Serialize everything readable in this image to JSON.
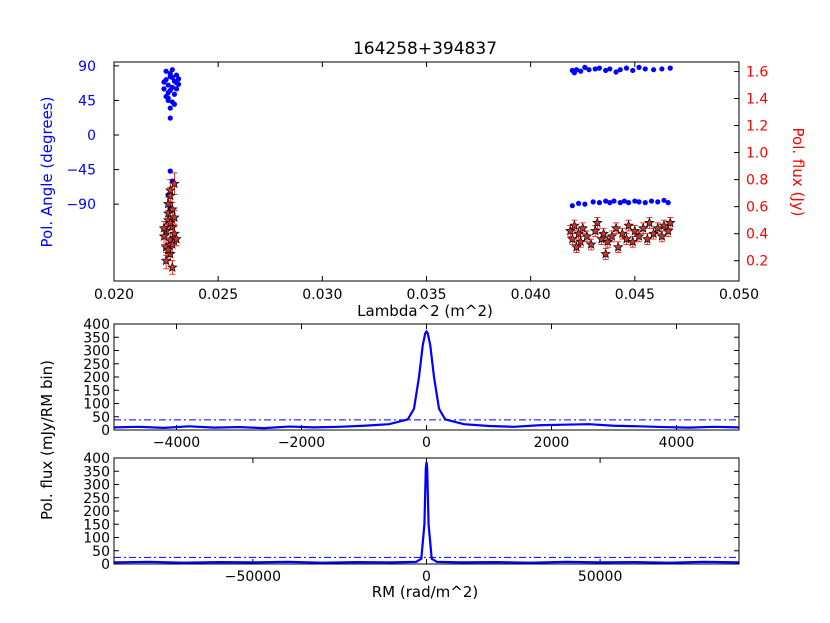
{
  "chart_data": [
    {
      "type": "scatter",
      "title": "164258+394837",
      "xlabel": "Lambda^2 (m^2)",
      "ylabel": "Pol. Angle (degrees)",
      "y2label": "Pol. flux (Jy)",
      "xlim": [
        0.02,
        0.05
      ],
      "ylim": [
        -190,
        95
      ],
      "y2lim": [
        0.05,
        1.67
      ],
      "xticks": [
        "0.020",
        "0.025",
        "0.030",
        "0.035",
        "0.040",
        "0.045",
        "0.050"
      ],
      "yticks": [
        "90",
        "45",
        "0",
        "−45",
        "−90"
      ],
      "y2ticks": [
        "0.2",
        "0.4",
        "0.6",
        "0.8",
        "1.0",
        "1.2",
        "1.4",
        "1.6"
      ],
      "grid": false,
      "colors": {
        "angle": "#0000ff",
        "flux_marker": "#cc3333",
        "flux_error": "#ff0000",
        "flux_edge": "#000000",
        "right_axis": "#ff0000",
        "left_axis": "#0000ff"
      },
      "series": [
        {
          "axis": "left",
          "marker": "dot",
          "points": [
            [
              0.0225,
              72
            ],
            [
              0.0226,
              65
            ],
            [
              0.0227,
              80
            ],
            [
              0.0224,
              60
            ],
            [
              0.0226,
              55
            ],
            [
              0.0228,
              75
            ],
            [
              0.0229,
              70
            ],
            [
              0.023,
              68
            ],
            [
              0.0225,
              50
            ],
            [
              0.0227,
              58
            ],
            [
              0.0228,
              62
            ],
            [
              0.0226,
              45
            ],
            [
              0.0229,
              40
            ],
            [
              0.0227,
              22
            ],
            [
              0.023,
              78
            ],
            [
              0.0231,
              73
            ],
            [
              0.0225,
              83
            ],
            [
              0.0228,
              85
            ],
            [
              0.0227,
              35
            ],
            [
              0.0226,
              48
            ],
            [
              0.0229,
              53
            ],
            [
              0.023,
              60
            ],
            [
              0.0231,
              66
            ],
            [
              0.0224,
              69
            ],
            [
              0.0228,
              43
            ],
            [
              0.0227,
              76
            ],
            [
              0.0227,
              -47
            ],
            [
              0.0228,
              -60
            ],
            [
              0.0226,
              -78
            ],
            [
              0.0227,
              -95
            ],
            [
              0.042,
              84
            ],
            [
              0.0421,
              81
            ],
            [
              0.0422,
              85
            ],
            [
              0.0424,
              83
            ],
            [
              0.0426,
              88
            ],
            [
              0.0428,
              85
            ],
            [
              0.0431,
              86
            ],
            [
              0.0433,
              87
            ],
            [
              0.0436,
              84
            ],
            [
              0.0438,
              86
            ],
            [
              0.0441,
              82
            ],
            [
              0.0443,
              85
            ],
            [
              0.0446,
              87
            ],
            [
              0.0449,
              84
            ],
            [
              0.0452,
              88
            ],
            [
              0.0455,
              86
            ],
            [
              0.0459,
              85
            ],
            [
              0.0463,
              86
            ],
            [
              0.0467,
              87
            ],
            [
              0.042,
              -92
            ],
            [
              0.0423,
              -89
            ],
            [
              0.0426,
              -90
            ],
            [
              0.043,
              -87
            ],
            [
              0.0433,
              -88
            ],
            [
              0.0436,
              -86
            ],
            [
              0.0438,
              -88
            ],
            [
              0.044,
              -86
            ],
            [
              0.0443,
              -88
            ],
            [
              0.0445,
              -86
            ],
            [
              0.0447,
              -88
            ],
            [
              0.045,
              -86
            ],
            [
              0.0452,
              -87
            ],
            [
              0.0455,
              -88
            ],
            [
              0.0458,
              -86
            ],
            [
              0.0461,
              -87
            ],
            [
              0.0464,
              -85
            ],
            [
              0.0466,
              -88
            ]
          ]
        },
        {
          "axis": "right",
          "marker": "star",
          "error_bars": true,
          "points": [
            [
              0.0225,
              0.42,
              0.05
            ],
            [
              0.0226,
              0.5,
              0.06
            ],
            [
              0.0227,
              0.35,
              0.05
            ],
            [
              0.0225,
              0.3,
              0.06
            ],
            [
              0.0228,
              0.45,
              0.05
            ],
            [
              0.0226,
              0.55,
              0.06
            ],
            [
              0.0227,
              0.25,
              0.05
            ],
            [
              0.0229,
              0.4,
              0.05
            ],
            [
              0.0224,
              0.38,
              0.06
            ],
            [
              0.0226,
              0.62,
              0.05
            ],
            [
              0.0228,
              0.32,
              0.06
            ],
            [
              0.0227,
              0.48,
              0.05
            ],
            [
              0.0225,
              0.2,
              0.06
            ],
            [
              0.0229,
              0.52,
              0.05
            ],
            [
              0.0228,
              0.15,
              0.05
            ],
            [
              0.023,
              0.36,
              0.05
            ],
            [
              0.0227,
              0.68,
              0.06
            ],
            [
              0.0226,
              0.28,
              0.05
            ],
            [
              0.0224,
              0.44,
              0.05
            ],
            [
              0.0228,
              0.58,
              0.05
            ],
            [
              0.0229,
              0.77,
              0.08
            ],
            [
              0.0227,
              0.72,
              0.08
            ],
            [
              0.0419,
              0.42,
              0.04
            ],
            [
              0.042,
              0.36,
              0.04
            ],
            [
              0.0421,
              0.46,
              0.04
            ],
            [
              0.0422,
              0.3,
              0.04
            ],
            [
              0.0423,
              0.4,
              0.04
            ],
            [
              0.0424,
              0.34,
              0.04
            ],
            [
              0.0425,
              0.44,
              0.04
            ],
            [
              0.0427,
              0.38,
              0.04
            ],
            [
              0.0429,
              0.32,
              0.04
            ],
            [
              0.0431,
              0.42,
              0.04
            ],
            [
              0.0432,
              0.48,
              0.04
            ],
            [
              0.0434,
              0.36,
              0.04
            ],
            [
              0.0435,
              0.4,
              0.04
            ],
            [
              0.0436,
              0.25,
              0.04
            ],
            [
              0.0437,
              0.34,
              0.04
            ],
            [
              0.0439,
              0.38,
              0.04
            ],
            [
              0.0441,
              0.44,
              0.04
            ],
            [
              0.0442,
              0.3,
              0.04
            ],
            [
              0.0444,
              0.4,
              0.04
            ],
            [
              0.0446,
              0.36,
              0.04
            ],
            [
              0.0447,
              0.46,
              0.04
            ],
            [
              0.0449,
              0.34,
              0.04
            ],
            [
              0.045,
              0.42,
              0.04
            ],
            [
              0.0452,
              0.38,
              0.04
            ],
            [
              0.0454,
              0.44,
              0.04
            ],
            [
              0.0456,
              0.36,
              0.04
            ],
            [
              0.0457,
              0.48,
              0.04
            ],
            [
              0.0459,
              0.4,
              0.04
            ],
            [
              0.0461,
              0.44,
              0.04
            ],
            [
              0.0463,
              0.38,
              0.04
            ],
            [
              0.0464,
              0.46,
              0.04
            ],
            [
              0.0466,
              0.42,
              0.04
            ],
            [
              0.0467,
              0.48,
              0.04
            ]
          ]
        }
      ]
    },
    {
      "type": "line",
      "xlim": [
        -5000,
        5000
      ],
      "ylim": [
        0,
        400
      ],
      "xticks": [
        "−4000",
        "−2000",
        "0",
        "2000",
        "4000"
      ],
      "yticks": [
        "400",
        "350",
        "300",
        "250",
        "200",
        "150",
        "100",
        "50",
        "0"
      ],
      "color": "#0000ff",
      "threshold": 38,
      "series": [
        {
          "x": [
            -5000,
            -4600,
            -4200,
            -3800,
            -3400,
            -3000,
            -2600,
            -2200,
            -1800,
            -1400,
            -1000,
            -600,
            -300,
            -200,
            -120,
            -60,
            -20,
            0,
            20,
            60,
            120,
            200,
            300,
            600,
            1000,
            1400,
            1800,
            2200,
            2600,
            3000,
            3400,
            3800,
            4200,
            4600,
            5000
          ],
          "values": [
            10,
            12,
            8,
            14,
            9,
            11,
            7,
            13,
            10,
            12,
            16,
            22,
            40,
            80,
            200,
            320,
            365,
            372,
            365,
            320,
            200,
            80,
            40,
            22,
            15,
            12,
            18,
            20,
            22,
            16,
            14,
            11,
            9,
            12,
            10
          ]
        }
      ]
    },
    {
      "type": "line",
      "xlabel": "RM (rad/m^2)",
      "xlim": [
        -90000,
        90000
      ],
      "ylim": [
        0,
        400
      ],
      "xticks": [
        "−50000",
        "0",
        "50000"
      ],
      "yticks": [
        "400",
        "350",
        "300",
        "250",
        "200",
        "150",
        "100",
        "50",
        "0"
      ],
      "color": "#0000ff",
      "threshold": 25,
      "series": [
        {
          "x": [
            -90000,
            -80000,
            -70000,
            -60000,
            -50000,
            -40000,
            -30000,
            -20000,
            -10000,
            -3000,
            -1500,
            -600,
            -200,
            0,
            200,
            600,
            1500,
            3000,
            10000,
            20000,
            30000,
            40000,
            50000,
            60000,
            70000,
            80000,
            90000
          ],
          "values": [
            6,
            8,
            5,
            7,
            6,
            8,
            5,
            7,
            6,
            8,
            20,
            150,
            360,
            385,
            360,
            150,
            20,
            8,
            6,
            7,
            5,
            8,
            6,
            7,
            5,
            8,
            6
          ]
        }
      ]
    }
  ],
  "shared_ylabel": "Pol. flux (mJy/RM bin)"
}
